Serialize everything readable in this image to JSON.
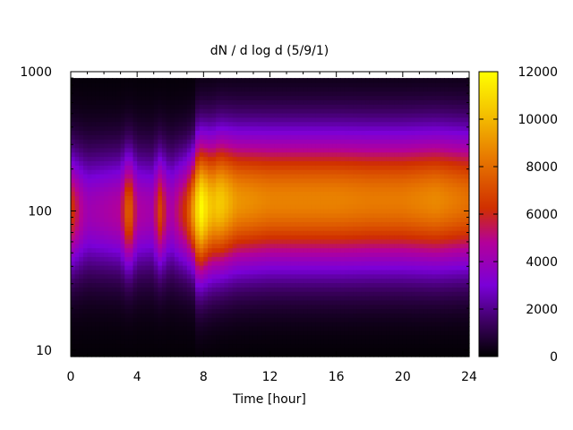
{
  "chart_data": {
    "type": "heatmap",
    "title": "dN / d log d (5/9/1)",
    "xlabel": "Time [hour]",
    "ylabel": "",
    "xlim": [
      0,
      24
    ],
    "ylim": [
      9,
      1000
    ],
    "yscale": "log",
    "x_ticks": [
      0,
      4,
      8,
      12,
      16,
      20,
      24
    ],
    "x_tick_labels": [
      "0",
      "4",
      "8",
      "12",
      "16",
      "20",
      "24"
    ],
    "y_ticks": [
      10,
      100,
      1000
    ],
    "y_tick_labels": [
      "10",
      "100",
      "1000"
    ],
    "colorbar": {
      "range": [
        0,
        12000
      ],
      "ticks": [
        0,
        2000,
        4000,
        6000,
        8000,
        10000,
        12000
      ],
      "tick_labels": [
        "0",
        "2000",
        "4000",
        "6000",
        "8000",
        "10000",
        "12000"
      ],
      "palette": [
        "#000000",
        "#3c0060",
        "#7a00d8",
        "#b3009a",
        "#d02f00",
        "#e87a00",
        "#f4c000",
        "#ffff00"
      ]
    },
    "grid": false,
    "legend": "none",
    "peak_diameter_series": {
      "description_time": [
        0,
        0.5,
        1,
        2,
        3,
        3.5,
        4,
        5,
        5.3,
        6,
        7,
        7.8,
        8.5,
        9,
        10,
        12,
        14,
        16,
        18,
        20,
        22,
        24
      ],
      "peak_diameter": [
        100,
        100,
        100,
        100,
        100,
        100,
        100,
        100,
        100,
        100,
        100,
        105,
        110,
        115,
        118,
        120,
        120,
        120,
        120,
        120,
        120,
        120
      ],
      "peak_value": [
        6000,
        4500,
        3500,
        3800,
        4200,
        7500,
        4000,
        3600,
        6500,
        3600,
        6000,
        11500,
        9500,
        10000,
        8500,
        8000,
        8000,
        8000,
        7800,
        7800,
        8200,
        7500
      ]
    }
  }
}
